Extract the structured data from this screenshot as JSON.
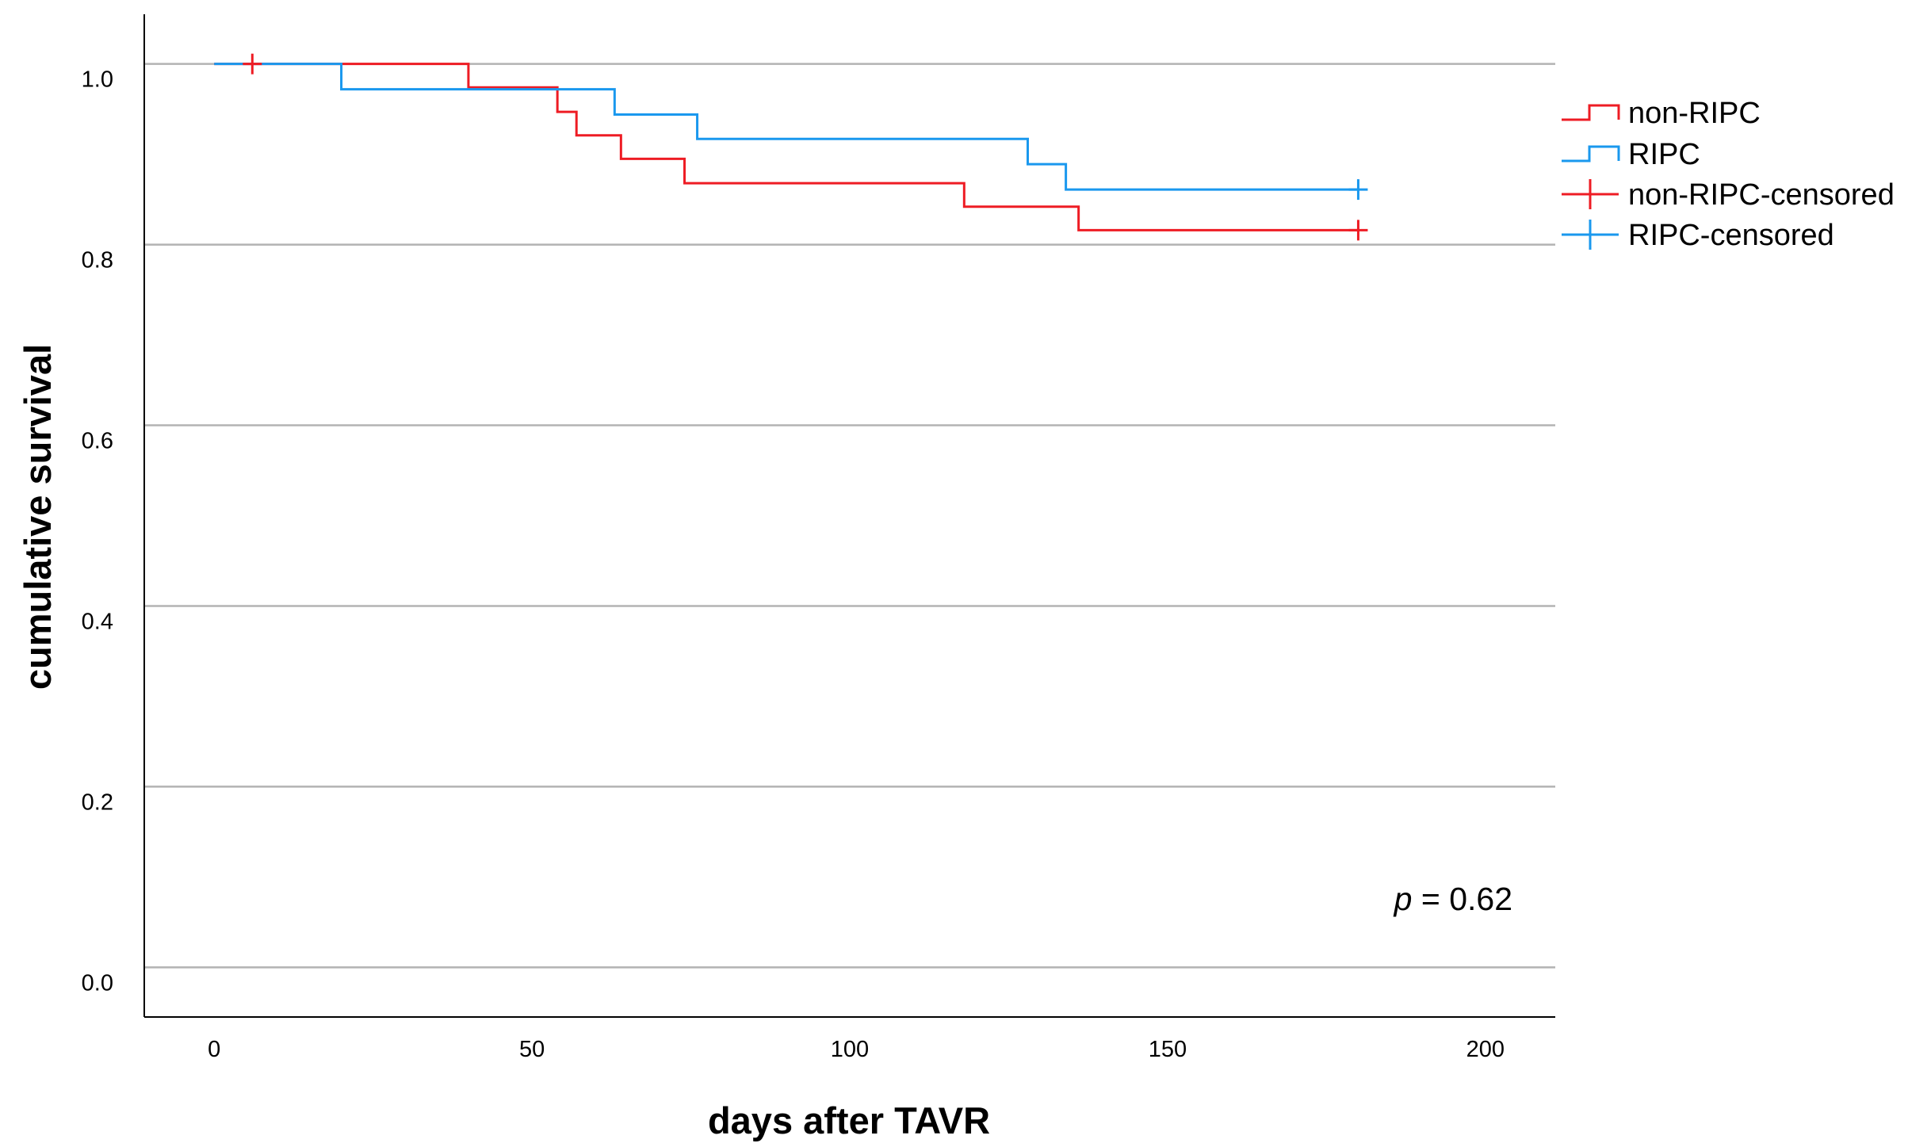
{
  "chart_data": {
    "type": "line",
    "title": "",
    "xlabel": "days after TAVR",
    "ylabel": "cumulative survival",
    "xlim": [
      -11,
      211
    ],
    "ylim": [
      -0.055,
      1.055
    ],
    "x_ticks": [
      0,
      50,
      100,
      150,
      200
    ],
    "x_tick_labels": [
      "0",
      "50",
      "100",
      "150",
      "200"
    ],
    "y_ticks": [
      0.0,
      0.2,
      0.4,
      0.6,
      0.8,
      1.0
    ],
    "y_tick_labels": [
      "0.0",
      "0.2",
      "0.4",
      "0.6",
      "0.8",
      "1.0"
    ],
    "grid": "horizontal",
    "legend_position": "right",
    "annotation": {
      "prefix": "p",
      "suffix": " = 0.62"
    },
    "series": [
      {
        "name": "non-RIPC",
        "color": "#ee1c24",
        "steps": [
          [
            0,
            1.0
          ],
          [
            40,
            0.974
          ],
          [
            54,
            0.947
          ],
          [
            57,
            0.921
          ],
          [
            64,
            0.895
          ],
          [
            74,
            0.868
          ],
          [
            118,
            0.842
          ],
          [
            136,
            0.816
          ],
          [
            180,
            0.816
          ]
        ],
        "censored": [
          [
            6,
            1.0
          ],
          [
            180,
            0.816
          ]
        ]
      },
      {
        "name": "RIPC",
        "color": "#1a98ee",
        "steps": [
          [
            0,
            1.0
          ],
          [
            20,
            0.972
          ],
          [
            63,
            0.944
          ],
          [
            76,
            0.917
          ],
          [
            128,
            0.889
          ],
          [
            134,
            0.861
          ],
          [
            180,
            0.861
          ]
        ],
        "censored": [
          [
            180,
            0.861
          ]
        ]
      }
    ],
    "legend": [
      {
        "label": "non-RIPC",
        "color": "#ee1c24",
        "kind": "step"
      },
      {
        "label": "RIPC",
        "color": "#1a98ee",
        "kind": "step"
      },
      {
        "label": "non-RIPC-censored",
        "color": "#ee1c24",
        "kind": "censor"
      },
      {
        "label": "RIPC-censored",
        "color": "#1a98ee",
        "kind": "censor"
      }
    ]
  }
}
